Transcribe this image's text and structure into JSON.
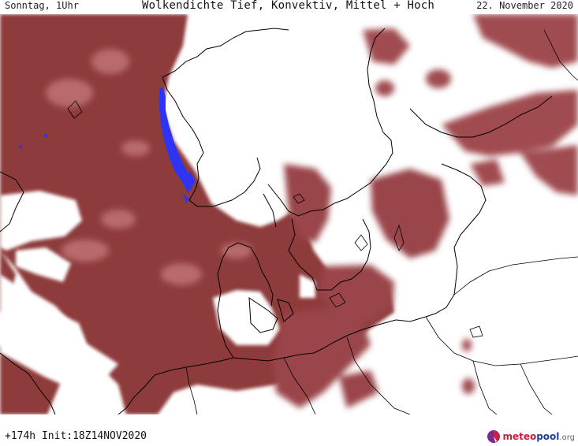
{
  "header": {
    "day_time": "Sonntag, 1Uhr",
    "title": "Wolkendichte  Tief, Konvektiv, Mittel + Hoch",
    "date": "22. November 2020"
  },
  "footer": {
    "run_info": "+174h Init:18Z14NOV2020",
    "logo_part1": "meteo",
    "logo_part2": "pool",
    "logo_part3": ".org"
  },
  "colors": {
    "cloud_dense": "#8e3a3a",
    "cloud_medium": "#a8575a",
    "cloud_light": "#c7898a",
    "convective": "#2f34f2",
    "coastline": "#000000"
  }
}
